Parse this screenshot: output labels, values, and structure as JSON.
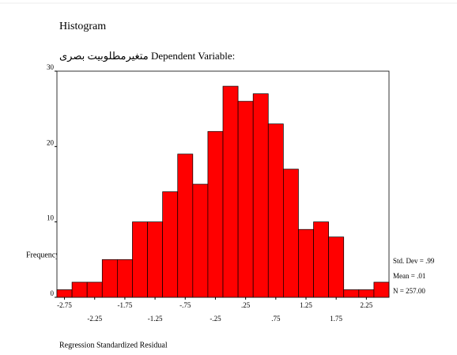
{
  "chart_data": {
    "type": "histogram",
    "title": "Histogram",
    "subtitle": "متغیرمطلوبیت بصری Dependent Variable:",
    "x_label": "Regression Standardized Residual",
    "y_label": "Frequency",
    "bins": [
      -2.875,
      -2.625,
      -2.375,
      -2.125,
      -1.875,
      -1.625,
      -1.375,
      -1.125,
      -0.875,
      -0.625,
      -0.375,
      -0.125,
      0.125,
      0.375,
      0.625,
      0.875,
      1.125,
      1.375,
      1.625,
      1.875,
      2.125,
      2.375,
      2.625
    ],
    "values": [
      1,
      2,
      2,
      5,
      5,
      10,
      10,
      14,
      19,
      15,
      22,
      28,
      26,
      27,
      23,
      17,
      9,
      10,
      8,
      1,
      1,
      2
    ],
    "color": "#ff0000",
    "xlim": [
      -2.875,
      2.625
    ],
    "ylim": [
      0,
      30
    ],
    "xticks": [
      -2.75,
      -2.25,
      -1.75,
      -1.25,
      {
        "value": -0.75,
        "label": "-.75"
      },
      {
        "value": -0.25,
        "label": "-.25"
      },
      {
        "value": 0.25,
        "label": ".25"
      },
      {
        "value": 0.75,
        "label": ".75"
      },
      1.25,
      1.75,
      2.25
    ],
    "yticks": [
      0,
      10,
      20,
      30
    ],
    "annotations": [
      "Std. Dev = .99",
      "Mean = .01",
      "N = 257.00"
    ]
  }
}
